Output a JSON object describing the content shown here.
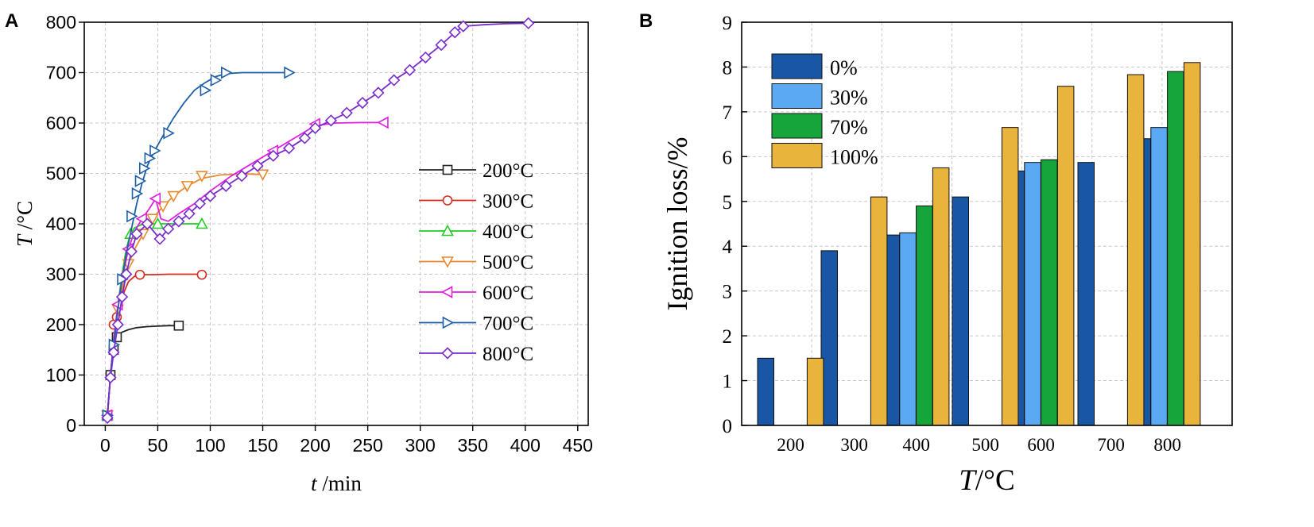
{
  "chart_data": [
    {
      "panel_label": "A",
      "type": "line",
      "xlabel_var": "t",
      "xlabel_unit": " /min",
      "ylabel_var": "T",
      "ylabel_unit": " /°C",
      "xlim": [
        -20,
        460
      ],
      "ylim": [
        0,
        800
      ],
      "xticks": [
        0,
        50,
        100,
        150,
        200,
        250,
        300,
        350,
        400,
        450
      ],
      "yticks": [
        0,
        100,
        200,
        300,
        400,
        500,
        600,
        700,
        800
      ],
      "grid": true,
      "legend_position": "right-middle",
      "series": [
        {
          "name": "200°C",
          "color": "#222222",
          "marker": "square",
          "x": [
            2,
            5,
            8,
            11,
            16,
            22,
            30,
            40,
            50,
            60,
            70
          ],
          "y": [
            20,
            100,
            150,
            175,
            185,
            190,
            194,
            196,
            197,
            198,
            198
          ],
          "marker_x": [
            2,
            5,
            8,
            11,
            70
          ],
          "marker_y": [
            20,
            100,
            150,
            175,
            198
          ]
        },
        {
          "name": "300°C",
          "color": "#d62a1e",
          "marker": "circle",
          "x": [
            2,
            5,
            8,
            11,
            14,
            18,
            22,
            28,
            34,
            45,
            60,
            75,
            92
          ],
          "y": [
            20,
            100,
            160,
            215,
            240,
            265,
            285,
            296,
            299,
            299,
            300,
            300,
            300
          ],
          "marker_x": [
            2,
            8,
            11,
            33,
            92
          ],
          "marker_y": [
            20,
            200,
            215,
            299,
            299
          ]
        },
        {
          "name": "400°C",
          "color": "#22cc22",
          "marker": "triangle-up",
          "x": [
            2,
            5,
            8,
            12,
            16,
            20,
            24,
            28,
            34,
            45,
            60,
            75,
            92
          ],
          "y": [
            20,
            100,
            165,
            240,
            300,
            350,
            380,
            392,
            398,
            400,
            400,
            400,
            400
          ],
          "marker_x": [
            2,
            24,
            50,
            92
          ],
          "marker_y": [
            20,
            380,
            400,
            400
          ]
        },
        {
          "name": "500°C",
          "color": "#e88a2d",
          "marker": "triangle-down",
          "x": [
            2,
            5,
            8,
            12,
            17,
            22,
            28,
            36,
            45,
            55,
            65,
            78,
            92,
            110,
            130,
            150
          ],
          "y": [
            20,
            100,
            170,
            230,
            280,
            320,
            350,
            380,
            410,
            435,
            455,
            475,
            490,
            497,
            499,
            498
          ],
          "marker_x": [
            2,
            12,
            22,
            36,
            45,
            55,
            65,
            78,
            92,
            150
          ],
          "marker_y": [
            20,
            230,
            320,
            380,
            410,
            435,
            455,
            475,
            495,
            498
          ]
        },
        {
          "name": "600°C",
          "color": "#e020e0",
          "marker": "triangle-left",
          "x": [
            2,
            5,
            8,
            12,
            17,
            22,
            28,
            35,
            42,
            48,
            53,
            60,
            70,
            85,
            100,
            120,
            140,
            160,
            180,
            200,
            220,
            245,
            265
          ],
          "y": [
            20,
            100,
            170,
            240,
            300,
            350,
            385,
            410,
            430,
            450,
            410,
            405,
            420,
            440,
            465,
            495,
            520,
            545,
            570,
            595,
            600,
            601,
            601
          ],
          "marker_x": [
            2,
            12,
            22,
            35,
            48,
            160,
            200,
            265
          ],
          "marker_y": [
            20,
            240,
            350,
            410,
            450,
            545,
            598,
            601
          ]
        },
        {
          "name": "700°C",
          "color": "#1f5fa8",
          "marker": "triangle-right",
          "x": [
            2,
            5,
            8,
            12,
            16,
            20,
            25,
            30,
            35,
            40,
            47,
            55,
            65,
            75,
            85,
            95,
            105,
            115,
            130,
            150,
            175
          ],
          "y": [
            20,
            100,
            160,
            230,
            290,
            340,
            390,
            440,
            480,
            515,
            545,
            575,
            610,
            640,
            665,
            680,
            692,
            698,
            700,
            700,
            700
          ],
          "marker_x": [
            2,
            8,
            16,
            25,
            30,
            33,
            37,
            42,
            47,
            60,
            95,
            105,
            115,
            175
          ],
          "marker_y": [
            20,
            160,
            290,
            415,
            460,
            485,
            510,
            530,
            545,
            580,
            665,
            685,
            700,
            700
          ]
        },
        {
          "name": "800°C",
          "color": "#7a2ccc",
          "marker": "diamond",
          "x": [
            2,
            5,
            8,
            12,
            16,
            20,
            25,
            30,
            40,
            52,
            60,
            70,
            80,
            90,
            100,
            115,
            130,
            145,
            160,
            175,
            190,
            200,
            215,
            230,
            245,
            260,
            275,
            290,
            305,
            320,
            333,
            341,
            360,
            380,
            403
          ],
          "y": [
            20,
            95,
            145,
            200,
            255,
            300,
            345,
            380,
            400,
            370,
            390,
            405,
            420,
            440,
            455,
            475,
            495,
            515,
            535,
            550,
            570,
            590,
            605,
            620,
            640,
            660,
            685,
            705,
            730,
            755,
            780,
            792,
            795,
            797,
            798
          ],
          "marker_x": [
            2,
            5,
            8,
            12,
            16,
            20,
            25,
            30,
            40,
            52,
            60,
            70,
            80,
            90,
            100,
            115,
            130,
            145,
            160,
            175,
            190,
            200,
            215,
            230,
            245,
            260,
            275,
            290,
            305,
            320,
            333,
            341,
            403
          ],
          "marker_y": [
            15,
            95,
            145,
            200,
            255,
            300,
            345,
            380,
            400,
            370,
            390,
            405,
            420,
            440,
            455,
            475,
            495,
            515,
            535,
            550,
            570,
            590,
            605,
            620,
            640,
            660,
            685,
            705,
            730,
            755,
            780,
            792,
            798
          ]
        }
      ]
    },
    {
      "panel_label": "B",
      "type": "bar",
      "xlabel_var": "T",
      "xlabel_unit": "/°C",
      "ylabel": "Ignition loss/%",
      "ylim": [
        0,
        9
      ],
      "yticks": [
        0,
        1,
        2,
        3,
        4,
        5,
        6,
        7,
        8,
        9
      ],
      "grid": true,
      "legend_position": "top-left",
      "categories": [
        "200",
        "300",
        "400",
        "500",
        "600",
        "700",
        "800"
      ],
      "series": [
        {
          "name": "0%",
          "color": "#1957a5",
          "values": [
            1.5,
            3.9,
            4.25,
            5.1,
            5.68,
            5.87,
            6.4
          ]
        },
        {
          "name": "30%",
          "color": "#5aa9f2",
          "values": [
            null,
            null,
            4.3,
            null,
            5.87,
            null,
            6.65
          ]
        },
        {
          "name": "70%",
          "color": "#16a53a",
          "values": [
            null,
            null,
            4.9,
            null,
            5.93,
            null,
            7.9
          ]
        },
        {
          "name": "100%",
          "color": "#e8b43c",
          "values": [
            1.5,
            5.1,
            5.75,
            6.65,
            7.57,
            7.83,
            8.1
          ]
        }
      ]
    }
  ]
}
